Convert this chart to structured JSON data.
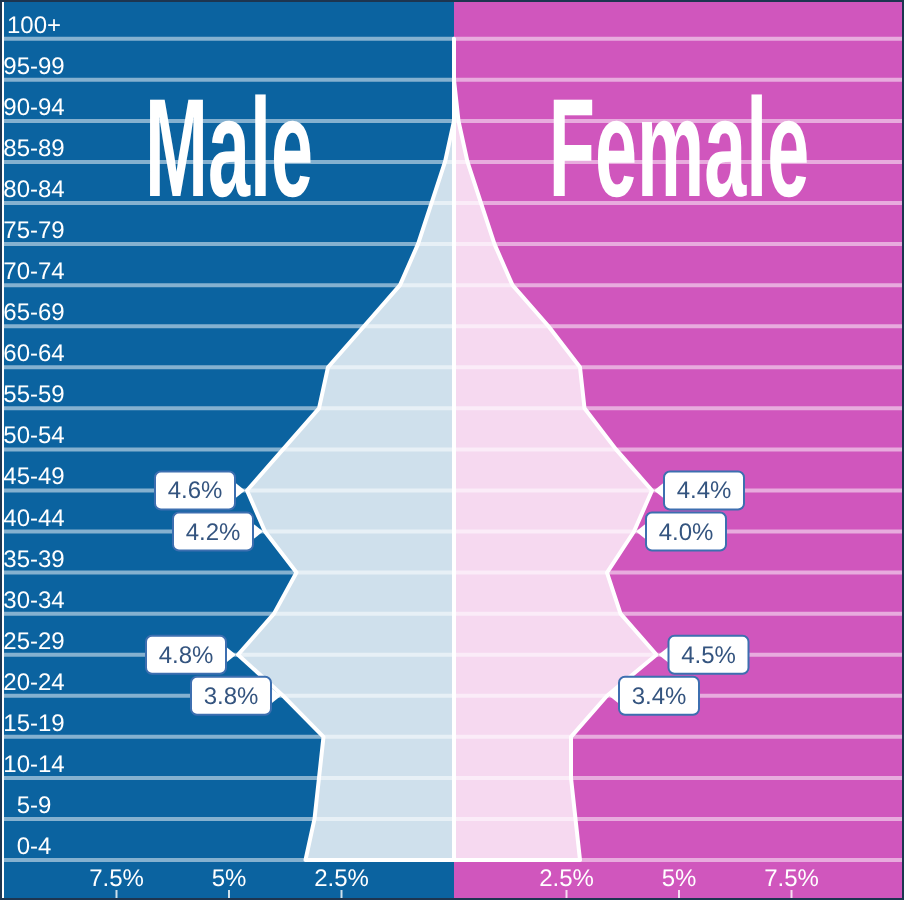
{
  "chart_data": [
    {
      "type": "area",
      "orientation": "horizontal",
      "categories": [
        "100+",
        "95-99",
        "90-94",
        "85-89",
        "80-84",
        "75-79",
        "70-74",
        "65-69",
        "60-64",
        "55-59",
        "50-54",
        "45-49",
        "40-44",
        "35-39",
        "30-34",
        "25-29",
        "20-24",
        "15-19",
        "10-14",
        "5-9",
        "0-4"
      ],
      "series": [
        {
          "name": "Male",
          "color": "#cfe0ec",
          "values": [
            0,
            0,
            0,
            0.2,
            0.5,
            0.8,
            1.2,
            2.0,
            2.8,
            3.0,
            3.8,
            4.6,
            4.2,
            3.5,
            4.0,
            4.8,
            3.8,
            2.9,
            3.0,
            3.1,
            3.3
          ],
          "value_labels": [
            null,
            null,
            null,
            null,
            null,
            null,
            null,
            null,
            null,
            null,
            null,
            "4.6%",
            "4.2%",
            null,
            null,
            "4.8%",
            "3.8%",
            null,
            null,
            null,
            null
          ]
        }
      ],
      "xlim": [
        10,
        0
      ],
      "xticks": [
        {
          "value": 7.5,
          "label": "7.5%"
        },
        {
          "value": 5,
          "label": "5%"
        },
        {
          "value": 2.5,
          "label": "2.5%"
        }
      ],
      "bands": [
        {
          "axis": "x",
          "from": 10,
          "to": 0,
          "color": "#0b63a0"
        }
      ],
      "grid": "y"
    },
    {
      "type": "area",
      "orientation": "horizontal",
      "categories": [
        null,
        null,
        null,
        null,
        null,
        null,
        null,
        null,
        null,
        null,
        null,
        null,
        null,
        null,
        null,
        null,
        null,
        null,
        null,
        null,
        null
      ],
      "series": [
        {
          "name": "Female",
          "color": "#f6d9f0",
          "values": [
            0,
            0,
            0.1,
            0.3,
            0.6,
            0.9,
            1.3,
            2.1,
            2.8,
            2.9,
            3.6,
            4.4,
            4.0,
            3.4,
            3.7,
            4.5,
            3.4,
            2.6,
            2.6,
            2.7,
            2.8
          ],
          "value_labels": [
            null,
            null,
            null,
            null,
            null,
            null,
            null,
            null,
            null,
            null,
            null,
            "4.4%",
            "4.0%",
            null,
            null,
            "4.5%",
            "3.4%",
            null,
            null,
            null,
            null
          ]
        }
      ],
      "xlim": [
        0,
        10
      ],
      "xticks": [
        {
          "value": 2.5,
          "label": "2.5%"
        },
        {
          "value": 5,
          "label": "5%"
        },
        {
          "value": 7.5,
          "label": "7.5%"
        }
      ],
      "bands": [
        {
          "axis": "x",
          "from": 0,
          "to": 10,
          "color": "#d056bd"
        }
      ],
      "grid": "y",
      "tick_labels": "x"
    }
  ]
}
